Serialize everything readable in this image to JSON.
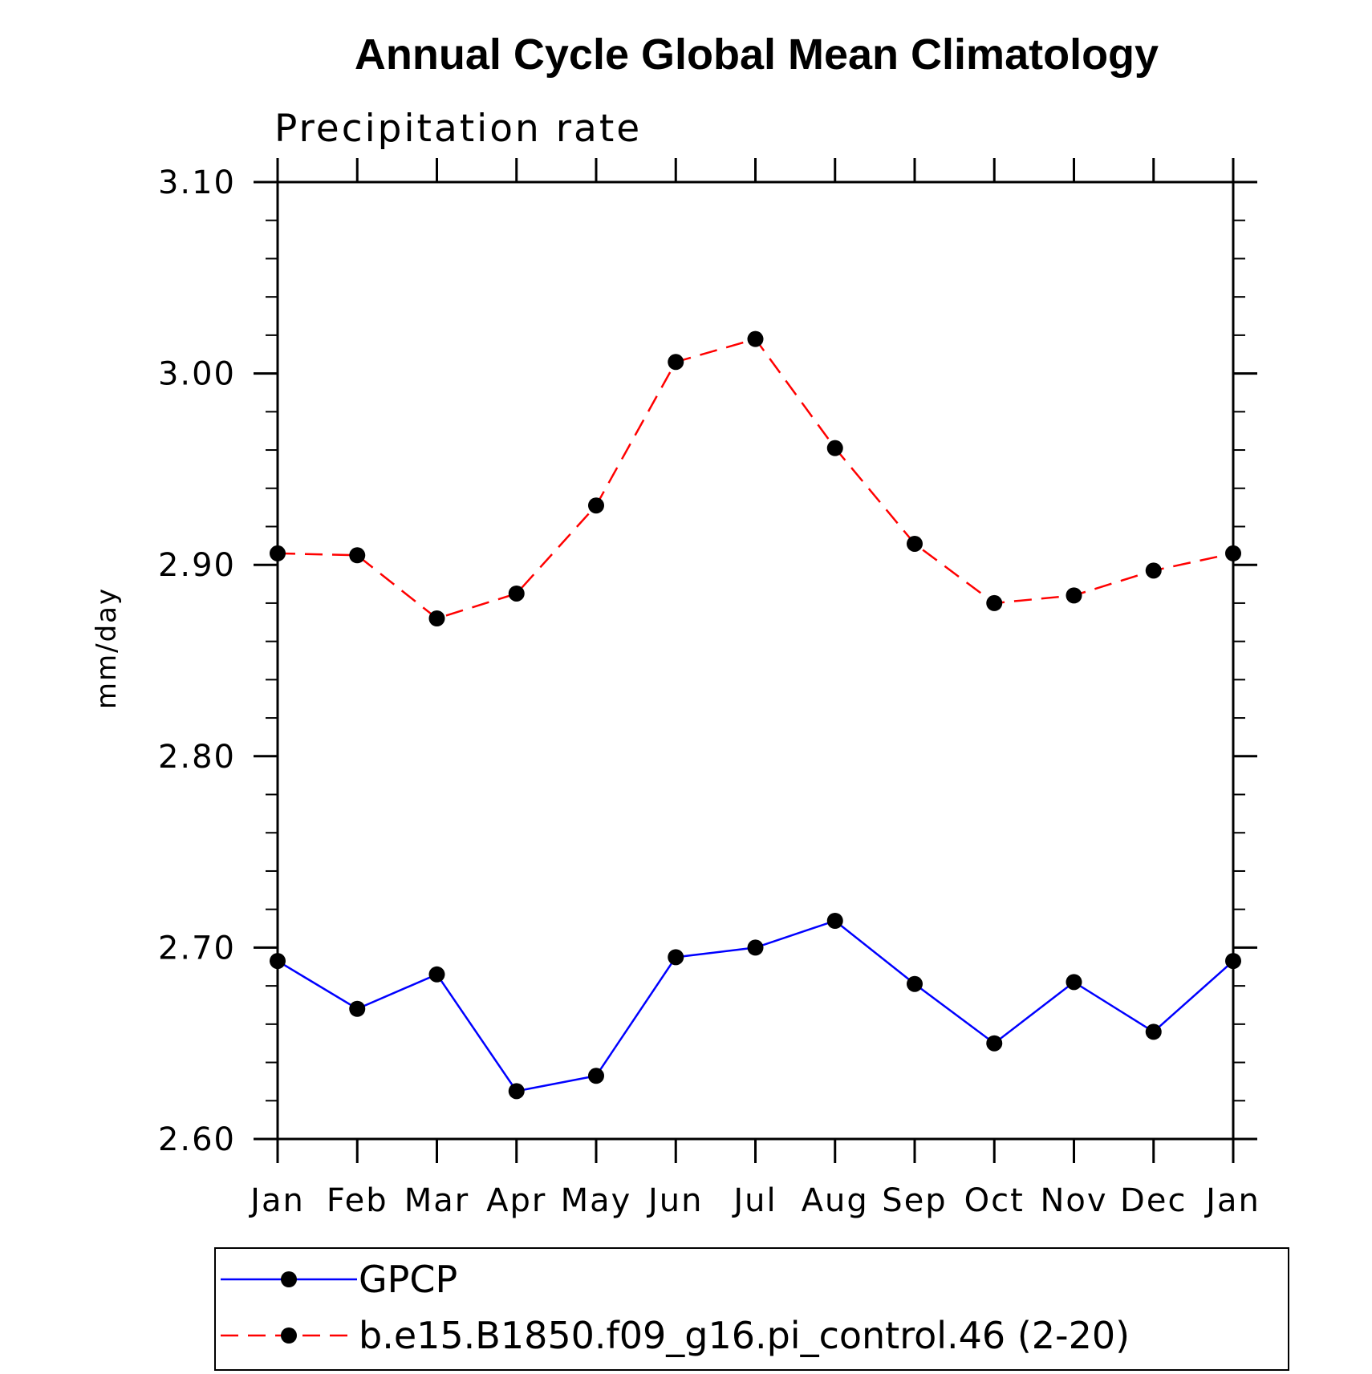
{
  "chart_data": {
    "type": "line",
    "title": "Annual Cycle Global Mean Climatology",
    "subtitle": "Precipitation rate",
    "xlabel": "",
    "ylabel": "mm/day",
    "categories": [
      "Jan",
      "Feb",
      "Mar",
      "Apr",
      "May",
      "Jun",
      "Jul",
      "Aug",
      "Sep",
      "Oct",
      "Nov",
      "Dec",
      "Jan"
    ],
    "ylim": [
      2.6,
      3.1
    ],
    "yticks": [
      "2.60",
      "2.70",
      "2.80",
      "2.90",
      "3.00",
      "3.10"
    ],
    "grid": false,
    "legend_position": "bottom",
    "series": [
      {
        "name": "GPCP",
        "color": "#0000ff",
        "line_style": "solid",
        "marker": "filled-circle",
        "values": [
          2.693,
          2.668,
          2.686,
          2.625,
          2.633,
          2.695,
          2.7,
          2.714,
          2.681,
          2.65,
          2.682,
          2.656,
          2.693
        ]
      },
      {
        "name": "b.e15.B1850.f09_g16.pi_control.46 (2-20)",
        "color": "#ff0000",
        "line_style": "dashed",
        "marker": "filled-circle",
        "values": [
          2.906,
          2.905,
          2.872,
          2.885,
          2.931,
          3.006,
          3.018,
          2.961,
          2.911,
          2.88,
          2.884,
          2.897,
          2.906
        ]
      }
    ]
  }
}
